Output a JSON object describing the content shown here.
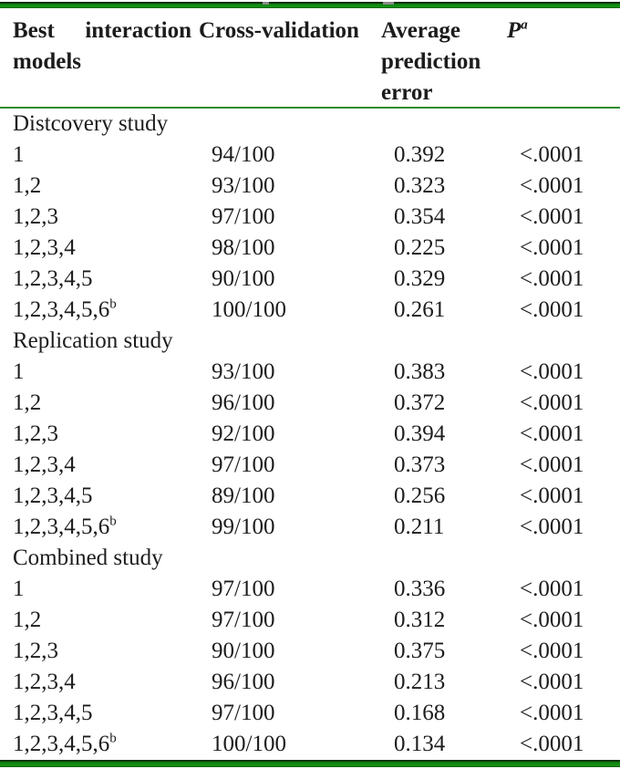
{
  "page": {
    "background": "#ffffff",
    "text_color": "#1c1c1c",
    "rule_color_thick": "#0f850f",
    "rule_color_thin": "#2e8b2e"
  },
  "table": {
    "header": {
      "col1": "Best interaction models",
      "col2": "Cross-validation",
      "col3": "Average prediction error",
      "p_label": "P",
      "p_superscript": "a"
    },
    "sections": [
      {
        "label": "Distcovery study",
        "rows": [
          {
            "model": "1",
            "model_sup": "",
            "cross_validation": "94/100",
            "avg_prediction_error": "0.392",
            "p_value": "<.0001"
          },
          {
            "model": "1,2",
            "model_sup": "",
            "cross_validation": "93/100",
            "avg_prediction_error": "0.323",
            "p_value": "<.0001"
          },
          {
            "model": "1,2,3",
            "model_sup": "",
            "cross_validation": "97/100",
            "avg_prediction_error": "0.354",
            "p_value": "<.0001"
          },
          {
            "model": "1,2,3,4",
            "model_sup": "",
            "cross_validation": "98/100",
            "avg_prediction_error": "0.225",
            "p_value": "<.0001"
          },
          {
            "model": "1,2,3,4,5",
            "model_sup": "",
            "cross_validation": "90/100",
            "avg_prediction_error": "0.329",
            "p_value": "<.0001"
          },
          {
            "model": "1,2,3,4,5,6",
            "model_sup": "b",
            "cross_validation": "100/100",
            "avg_prediction_error": "0.261",
            "p_value": "<.0001"
          }
        ]
      },
      {
        "label": "Replication study",
        "rows": [
          {
            "model": "1",
            "model_sup": "",
            "cross_validation": "93/100",
            "avg_prediction_error": "0.383",
            "p_value": "<.0001"
          },
          {
            "model": "1,2",
            "model_sup": "",
            "cross_validation": "96/100",
            "avg_prediction_error": "0.372",
            "p_value": "<.0001"
          },
          {
            "model": "1,2,3",
            "model_sup": "",
            "cross_validation": "92/100",
            "avg_prediction_error": "0.394",
            "p_value": "<.0001"
          },
          {
            "model": "1,2,3,4",
            "model_sup": "",
            "cross_validation": "97/100",
            "avg_prediction_error": "0.373",
            "p_value": "<.0001"
          },
          {
            "model": "1,2,3,4,5",
            "model_sup": "",
            "cross_validation": "89/100",
            "avg_prediction_error": "0.256",
            "p_value": "<.0001"
          },
          {
            "model": "1,2,3,4,5,6",
            "model_sup": "b",
            "cross_validation": "99/100",
            "avg_prediction_error": "0.211",
            "p_value": "<.0001"
          }
        ]
      },
      {
        "label": "Combined study",
        "rows": [
          {
            "model": "1",
            "model_sup": "",
            "cross_validation": "97/100",
            "avg_prediction_error": "0.336",
            "p_value": "<.0001"
          },
          {
            "model": "1,2",
            "model_sup": "",
            "cross_validation": "97/100",
            "avg_prediction_error": "0.312",
            "p_value": "<.0001"
          },
          {
            "model": "1,2,3",
            "model_sup": "",
            "cross_validation": "90/100",
            "avg_prediction_error": "0.375",
            "p_value": "<.0001"
          },
          {
            "model": "1,2,3,4",
            "model_sup": "",
            "cross_validation": "96/100",
            "avg_prediction_error": "0.213",
            "p_value": "<.0001"
          },
          {
            "model": "1,2,3,4,5",
            "model_sup": "",
            "cross_validation": "97/100",
            "avg_prediction_error": "0.168",
            "p_value": "<.0001"
          },
          {
            "model": "1,2,3,4,5,6",
            "model_sup": "b",
            "cross_validation": "100/100",
            "avg_prediction_error": "0.134",
            "p_value": "<.0001"
          }
        ]
      }
    ]
  }
}
